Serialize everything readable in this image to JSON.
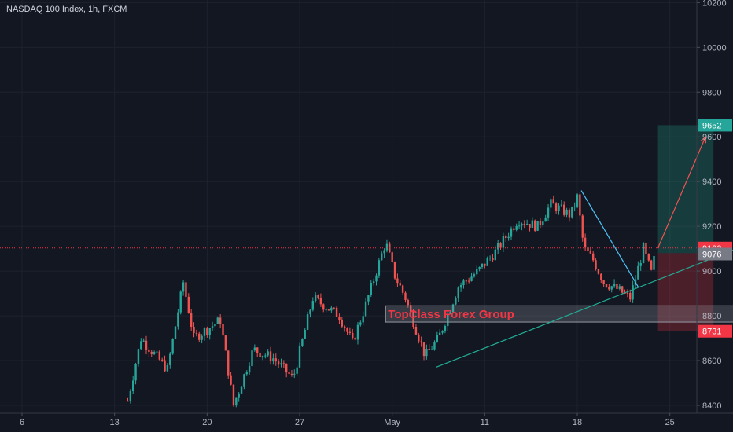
{
  "chart_data": {
    "type": "candlestick",
    "title": "NASDAQ 100 Index, 1h, FXCM",
    "x_ticks": [
      "6",
      "13",
      "20",
      "27",
      "May",
      "11",
      "18",
      "25"
    ],
    "y_ticks": [
      "8400",
      "8600",
      "8800",
      "9000",
      "9200",
      "9400",
      "9600",
      "9800",
      "10000",
      "10200"
    ],
    "ylim": [
      8385,
      10230
    ],
    "xlim_days": [
      3.5,
      58.5
    ],
    "grid": true,
    "current_price": 9103,
    "price_tags": [
      {
        "label": "9652",
        "value": 9652,
        "color": "#26a69a"
      },
      {
        "label": "9103",
        "value": 9103,
        "color": "#f23645"
      },
      {
        "label": "9076",
        "value": 9076,
        "color": "#787b86"
      },
      {
        "label": "8731",
        "value": 8731,
        "color": "#f23645"
      }
    ],
    "price_path": [
      {
        "day": 14.0,
        "price": 8420
      },
      {
        "day": 15.0,
        "price": 8700
      },
      {
        "day": 17.0,
        "price": 8560
      },
      {
        "day": 18.2,
        "price": 8950
      },
      {
        "day": 19.0,
        "price": 8700
      },
      {
        "day": 21.0,
        "price": 8780
      },
      {
        "day": 22.0,
        "price": 8400
      },
      {
        "day": 23.5,
        "price": 8650
      },
      {
        "day": 25.0,
        "price": 8610
      },
      {
        "day": 26.5,
        "price": 8520
      },
      {
        "day": 28.0,
        "price": 8880
      },
      {
        "day": 30.0,
        "price": 8800
      },
      {
        "day": 31.0,
        "price": 8680
      },
      {
        "day": 32.0,
        "price": 8850
      },
      {
        "day": 33.5,
        "price": 9130
      },
      {
        "day": 34.2,
        "price": 8980
      },
      {
        "day": 35.0,
        "price": 8880
      },
      {
        "day": 36.5,
        "price": 8620
      },
      {
        "day": 37.5,
        "price": 8700
      },
      {
        "day": 39.0,
        "price": 8930
      },
      {
        "day": 40.5,
        "price": 9000
      },
      {
        "day": 42.0,
        "price": 9100
      },
      {
        "day": 43.5,
        "price": 9230
      },
      {
        "day": 45.0,
        "price": 9200
      },
      {
        "day": 46.0,
        "price": 9300
      },
      {
        "day": 47.5,
        "price": 9250
      },
      {
        "day": 48.0,
        "price": 9330
      },
      {
        "day": 48.5,
        "price": 9100
      },
      {
        "day": 49.2,
        "price": 9050
      },
      {
        "day": 50.0,
        "price": 8950
      },
      {
        "day": 51.0,
        "price": 8920
      },
      {
        "day": 52.0,
        "price": 8880
      },
      {
        "day": 53.0,
        "price": 9100
      },
      {
        "day": 53.6,
        "price": 8990
      },
      {
        "day": 54.0,
        "price": 9110
      }
    ],
    "drawings": {
      "trendline": {
        "from": {
          "day": 37.3,
          "price": 8570
        },
        "to": {
          "day": 60.5,
          "price": 9110
        },
        "color": "#22ab94"
      },
      "wedge_line": {
        "from": {
          "day": 48.3,
          "price": 9360
        },
        "to": {
          "day": 52.6,
          "price": 8930
        },
        "color": "#4fc3f7"
      },
      "projection_arrow": {
        "from": {
          "day": 54.1,
          "price": 9103
        },
        "to": {
          "day": 57.7,
          "price": 9600
        },
        "color": "#ef5350"
      },
      "profit_zone": {
        "day_from": 54.1,
        "day_to": 58.3,
        "price_top": 9652,
        "price_bottom": 9080,
        "color": "#22ab94"
      },
      "loss_zone": {
        "day_from": 54.1,
        "day_to": 58.3,
        "price_top": 9080,
        "price_bottom": 8731,
        "color": "#f23645"
      },
      "zone_box": {
        "day_from": 33.5,
        "day_to": 63.0,
        "price_top": 8845,
        "price_bottom": 8772,
        "label": "TopClass Forex Group"
      }
    }
  }
}
